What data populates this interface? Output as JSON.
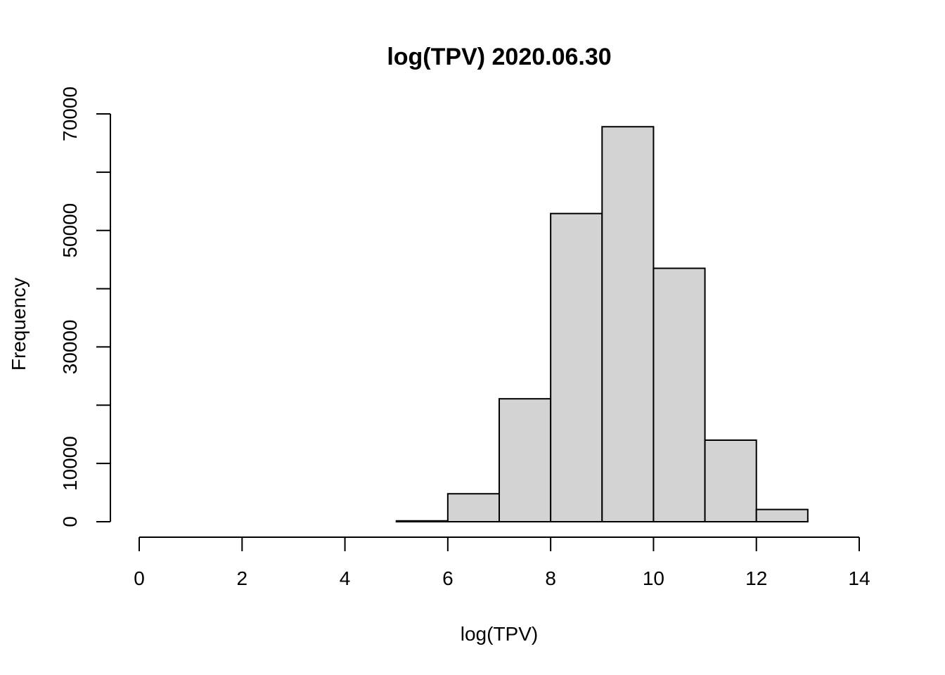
{
  "chart_data": {
    "type": "bar",
    "title": "log(TPV) 2020.06.30",
    "xlabel": "log(TPV)",
    "ylabel": "Frequency",
    "bar_color": "#d3d3d3",
    "edge_color": "#000000",
    "bins": [
      {
        "x0": 0,
        "x1": 1,
        "count": 0
      },
      {
        "x0": 1,
        "x1": 2,
        "count": 0
      },
      {
        "x0": 2,
        "x1": 3,
        "count": 0
      },
      {
        "x0": 3,
        "x1": 4,
        "count": 0
      },
      {
        "x0": 4,
        "x1": 5,
        "count": 0
      },
      {
        "x0": 5,
        "x1": 6,
        "count": 150
      },
      {
        "x0": 6,
        "x1": 7,
        "count": 4800
      },
      {
        "x0": 7,
        "x1": 8,
        "count": 21100
      },
      {
        "x0": 8,
        "x1": 9,
        "count": 52900
      },
      {
        "x0": 9,
        "x1": 10,
        "count": 67800
      },
      {
        "x0": 10,
        "x1": 11,
        "count": 43500
      },
      {
        "x0": 11,
        "x1": 12,
        "count": 14000
      },
      {
        "x0": 12,
        "x1": 13,
        "count": 2100
      },
      {
        "x0": 13,
        "x1": 14,
        "count": 0
      }
    ],
    "xlim": [
      0,
      14
    ],
    "ylim": [
      0,
      70000
    ],
    "x_ticks": [
      "0",
      "2",
      "4",
      "6",
      "8",
      "10",
      "12",
      "14"
    ],
    "y_ticks": [
      "0",
      "10000",
      "30000",
      "50000",
      "70000"
    ],
    "y_tick_marks": [
      0,
      10000,
      20000,
      30000,
      40000,
      50000,
      60000,
      70000
    ],
    "grid": false,
    "legend": "none"
  }
}
